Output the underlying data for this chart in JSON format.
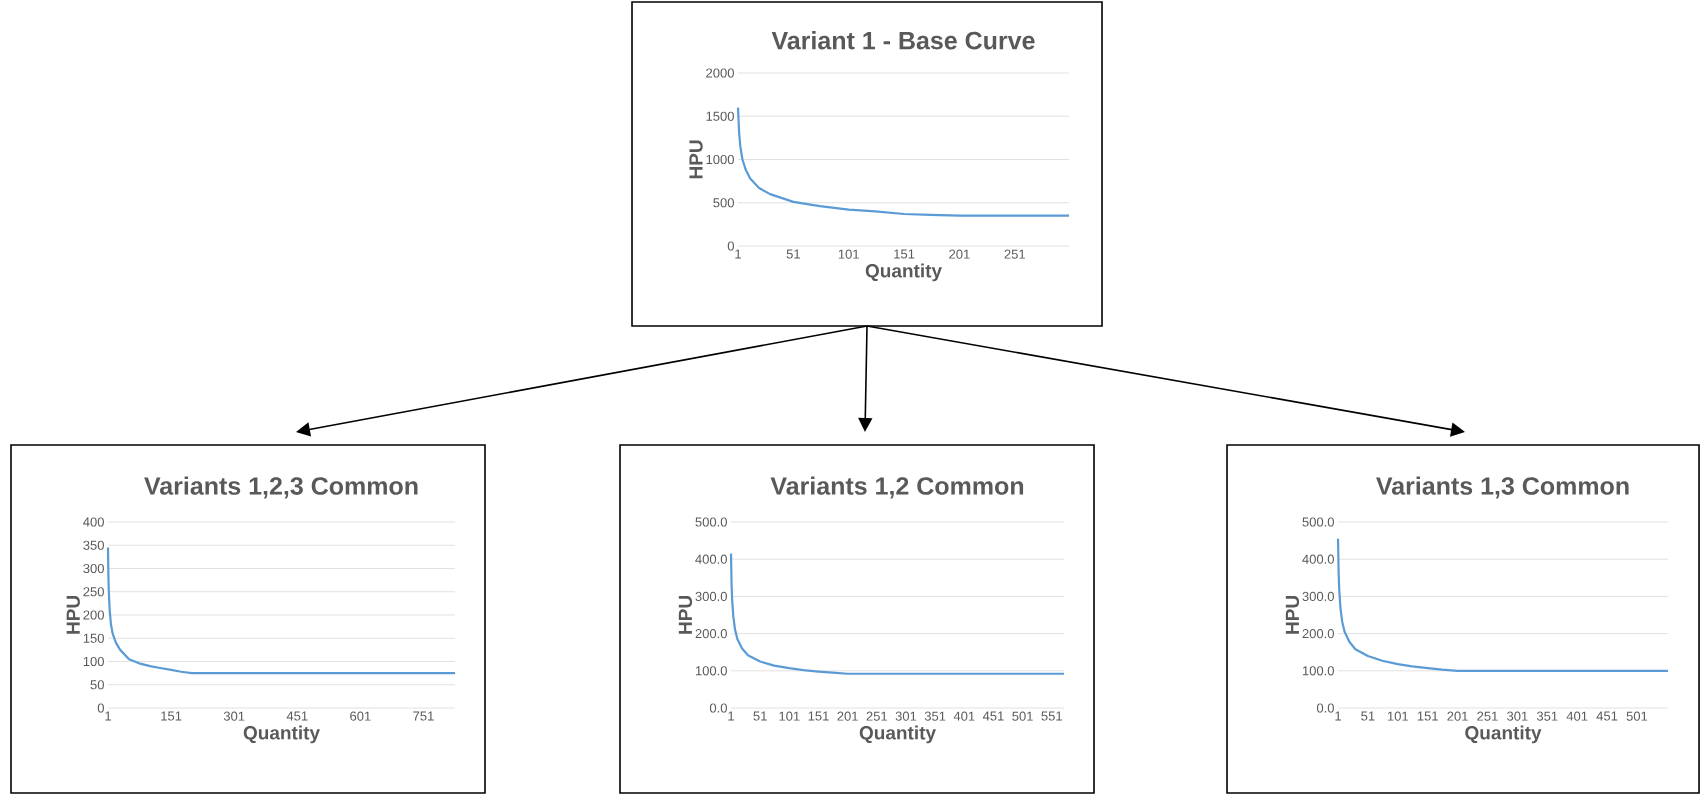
{
  "chart_data": [
    {
      "type": "line",
      "title": "Variant 1 - Base Curve",
      "xlabel": "Quantity",
      "ylabel": "HPU",
      "color": "#5b9bd5",
      "grid": "y",
      "xlim": [
        1,
        300
      ],
      "xticks": [
        1,
        51,
        101,
        151,
        201,
        251
      ],
      "ylim": [
        0,
        2000
      ],
      "yticks": [
        0,
        500,
        1000,
        1500,
        2000
      ],
      "x": [
        1,
        2,
        3,
        5,
        8,
        12,
        20,
        30,
        51,
        75,
        101,
        125,
        151,
        175,
        201,
        250,
        300
      ],
      "values": [
        1600,
        1310,
        1160,
        1000,
        880,
        780,
        670,
        600,
        510,
        460,
        420,
        400,
        370,
        360,
        350,
        350,
        350
      ]
    },
    {
      "type": "line",
      "title": "Variants 1,2,3 Common",
      "xlabel": "Quantity",
      "ylabel": "HPU",
      "color": "#5b9bd5",
      "grid": "y",
      "xlim": [
        1,
        826
      ],
      "xticks": [
        1,
        151,
        301,
        451,
        601,
        751
      ],
      "ylim": [
        0,
        400
      ],
      "yticks": [
        0,
        50,
        100,
        150,
        200,
        250,
        300,
        350,
        400
      ],
      "x": [
        1,
        2,
        3,
        5,
        8,
        12,
        20,
        30,
        51,
        75,
        101,
        125,
        151,
        175,
        200,
        826
      ],
      "values": [
        345,
        280,
        250,
        210,
        180,
        160,
        140,
        125,
        105,
        96,
        90,
        86,
        82,
        78,
        75,
        75
      ]
    },
    {
      "type": "line",
      "title": "Variants 1,2 Common",
      "xlabel": "Quantity",
      "ylabel": "HPU",
      "color": "#5b9bd5",
      "grid": "y",
      "xlim": [
        1,
        572
      ],
      "xticks": [
        1,
        51,
        101,
        151,
        201,
        251,
        301,
        351,
        401,
        451,
        501,
        551
      ],
      "ylim": [
        0,
        500
      ],
      "yticks": [
        {
          "value": 0,
          "label": "0.0"
        },
        {
          "value": 100,
          "label": "100.0"
        },
        {
          "value": 200,
          "label": "200.0"
        },
        {
          "value": 300,
          "label": "300.0"
        },
        {
          "value": 400,
          "label": "400.0"
        },
        {
          "value": 500,
          "label": "500.0"
        }
      ],
      "x": [
        1,
        2,
        3,
        5,
        8,
        12,
        20,
        30,
        51,
        75,
        101,
        125,
        151,
        175,
        201,
        572
      ],
      "values": [
        415,
        330,
        290,
        245,
        210,
        185,
        160,
        142,
        125,
        114,
        107,
        102,
        98,
        95,
        92,
        92
      ]
    },
    {
      "type": "line",
      "title": "Variants 1,3 Common",
      "xlabel": "Quantity",
      "ylabel": "HPU",
      "color": "#5b9bd5",
      "grid": "y",
      "xlim": [
        1,
        553
      ],
      "xticks": [
        1,
        51,
        101,
        151,
        201,
        251,
        301,
        351,
        401,
        451,
        501
      ],
      "ylim": [
        0,
        500
      ],
      "yticks": [
        {
          "value": 0,
          "label": "0.0"
        },
        {
          "value": 100,
          "label": "100.0"
        },
        {
          "value": 200,
          "label": "200.0"
        },
        {
          "value": 300,
          "label": "300.0"
        },
        {
          "value": 400,
          "label": "400.0"
        },
        {
          "value": 500,
          "label": "500.0"
        }
      ],
      "x": [
        1,
        2,
        3,
        5,
        8,
        12,
        20,
        30,
        51,
        75,
        101,
        125,
        151,
        175,
        201,
        553
      ],
      "values": [
        455,
        365,
        320,
        270,
        232,
        205,
        178,
        158,
        140,
        127,
        118,
        112,
        107,
        103,
        100,
        100
      ]
    }
  ]
}
